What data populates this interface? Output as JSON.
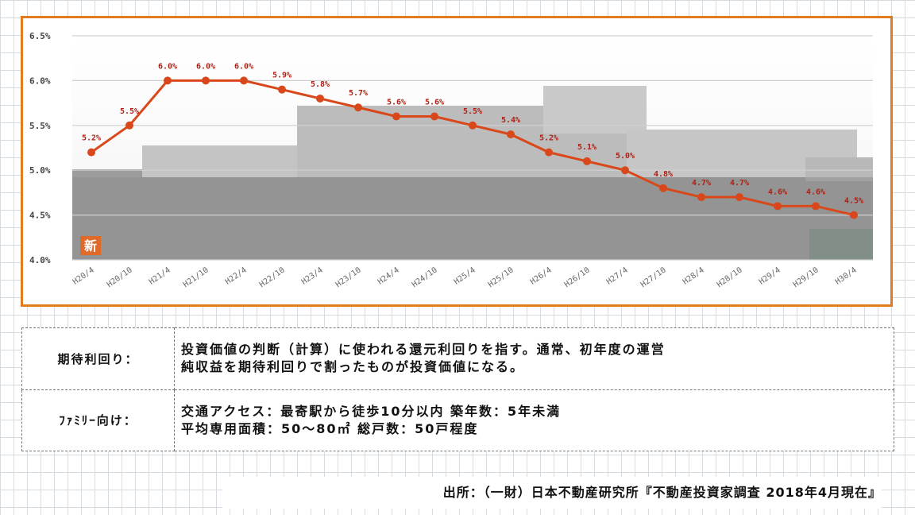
{
  "chart_data": {
    "type": "line",
    "categories": [
      "H20/4",
      "H20/10",
      "H21/4",
      "H21/10",
      "H22/4",
      "H22/10",
      "H23/4",
      "H23/10",
      "H24/4",
      "H24/10",
      "H25/4",
      "H25/10",
      "H26/4",
      "H26/10",
      "H27/4",
      "H27/10",
      "H28/4",
      "H28/10",
      "H29/4",
      "H29/10",
      "H30/4"
    ],
    "values": [
      5.2,
      5.5,
      6.0,
      6.0,
      6.0,
      5.9,
      5.8,
      5.7,
      5.6,
      5.6,
      5.5,
      5.4,
      5.2,
      5.1,
      5.0,
      4.8,
      4.7,
      4.7,
      4.6,
      4.6,
      4.5
    ],
    "data_labels": [
      "5.2%",
      "5.5%",
      "6.0%",
      "6.0%",
      "6.0%",
      "5.9%",
      "5.8%",
      "5.7%",
      "5.6%",
      "5.6%",
      "5.5%",
      "5.4%",
      "5.2%",
      "5.1%",
      "5.0%",
      "4.8%",
      "4.7%",
      "4.7%",
      "4.6%",
      "4.6%",
      "4.5%"
    ],
    "y_ticks": [
      "4.0%",
      "4.5%",
      "5.0%",
      "5.5%",
      "6.0%",
      "6.5%"
    ],
    "ylim": [
      4.0,
      6.5
    ],
    "grid": true,
    "line_color": "#d9481a",
    "label_color": "#b02015",
    "badge": "新"
  },
  "info_table": {
    "rows": [
      {
        "term": "期待利回り：",
        "lines": [
          "投資価値の判断（計算）に使われる還元利回りを指す。通常、初年度の運営",
          "純収益を期待利回りで割ったものが投資価値になる。"
        ]
      },
      {
        "term": "ﾌｧﾐﾘｰ向け：",
        "lines": [
          "交通アクセス：最寄駅から徒歩10分以内 築年数：5年未満",
          "平均専用面積：50～80㎡ 総戸数：50戸程度"
        ]
      }
    ]
  },
  "source": "出所：（一財）日本不動産研究所『不動産投資家調査 2018年4月現在』"
}
